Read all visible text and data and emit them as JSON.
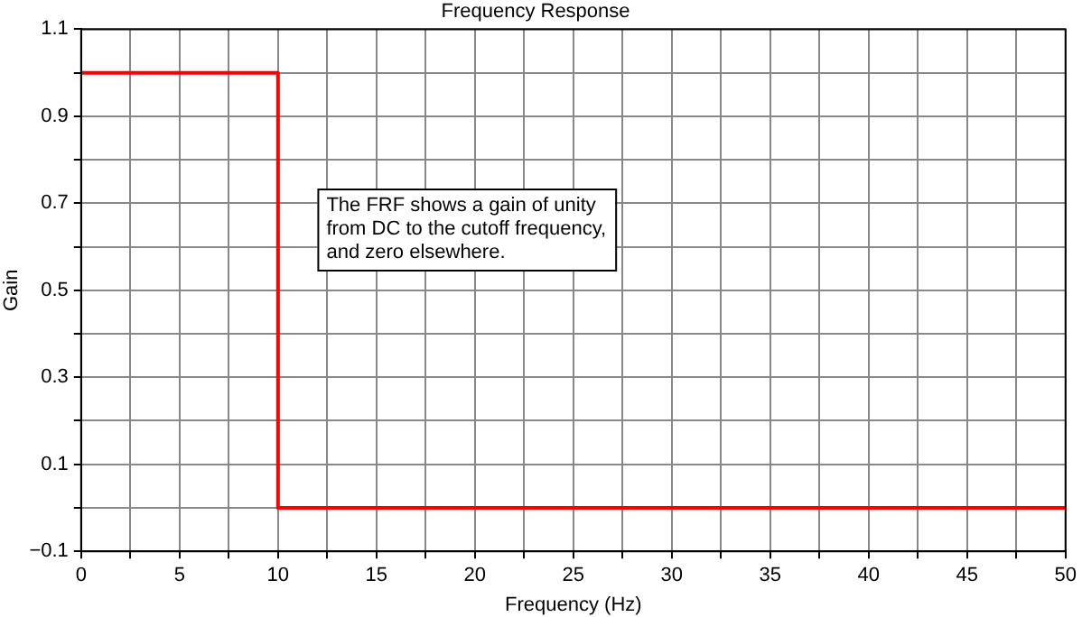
{
  "chart_data": {
    "type": "step",
    "title": "Frequency Response",
    "xlabel": "Frequency (Hz)",
    "ylabel": "Gain",
    "x": [
      0,
      10,
      50
    ],
    "series": [
      {
        "color": "#ff0000",
        "values": [
          1,
          0,
          0
        ]
      }
    ],
    "xlim": [
      0,
      50
    ],
    "xticks": [
      0,
      {
        "value": 2.5,
        "label": null
      },
      5,
      {
        "value": 7.5,
        "label": null
      },
      10,
      {
        "value": 12.5,
        "label": null
      },
      15,
      {
        "value": 17.5,
        "label": null
      },
      20,
      {
        "value": 22.5,
        "label": null
      },
      25,
      {
        "value": 27.5,
        "label": null
      },
      30,
      {
        "value": 32.5,
        "label": null
      },
      35,
      {
        "value": 37.5,
        "label": null
      },
      40,
      {
        "value": 42.5,
        "label": null
      },
      45,
      {
        "value": 47.5,
        "label": null
      },
      50
    ],
    "ylim": [
      -0.1,
      1.1
    ],
    "yticks": [
      {
        "value": -0.1,
        "label": "−0.1"
      },
      {
        "value": 0,
        "label": null
      },
      0.1,
      {
        "value": 0.2,
        "label": null
      },
      0.3,
      {
        "value": 0.4,
        "label": null
      },
      0.5,
      {
        "value": 0.6,
        "label": null
      },
      0.7,
      {
        "value": 0.8,
        "label": null
      },
      0.9,
      {
        "value": 1,
        "label": null
      },
      1.1
    ],
    "grid": true,
    "annotations": [
      "The FRF shows a gain of unity\nfrom DC to the cutoff frequency,\nand zero elsewhere."
    ]
  }
}
